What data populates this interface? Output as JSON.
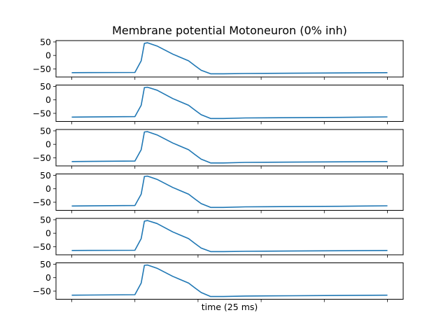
{
  "chart_data": {
    "type": "line",
    "title": "Membrane potential Motoneuron (0% inh)",
    "xlabel": "time (25 ms)",
    "ylabel": "",
    "ylim": [
      -80,
      55
    ],
    "yticks": [
      50,
      0,
      -50
    ],
    "ytick_labels": [
      "50",
      "0",
      "−50"
    ],
    "xlim": [
      -0.05,
      1.05
    ],
    "x_tick_count": 6,
    "x_tick_labels_shown": false,
    "grid": false,
    "legend": "none",
    "subplots": 6,
    "color": "#1f77b4",
    "series": [
      {
        "x": [
          0,
          0.2,
          0.22,
          0.23,
          0.24,
          0.27,
          0.32,
          0.37,
          0.39,
          0.41,
          0.44,
          0.48,
          0.55,
          0.7,
          0.85,
          1.0
        ],
        "y": [
          -64,
          -63,
          -20,
          45,
          47,
          35,
          5,
          -20,
          -38,
          -55,
          -68,
          -68,
          -67,
          -66,
          -65,
          -64
        ]
      },
      {
        "x": [
          0,
          0.2,
          0.22,
          0.23,
          0.24,
          0.27,
          0.32,
          0.37,
          0.39,
          0.41,
          0.44,
          0.48,
          0.55,
          0.7,
          0.85,
          1.0
        ],
        "y": [
          -64,
          -62,
          -20,
          46,
          47,
          36,
          5,
          -20,
          -38,
          -55,
          -69,
          -69,
          -67,
          -66,
          -65,
          -63
        ]
      },
      {
        "x": [
          0,
          0.2,
          0.22,
          0.23,
          0.24,
          0.27,
          0.32,
          0.37,
          0.39,
          0.41,
          0.44,
          0.48,
          0.55,
          0.7,
          0.85,
          1.0
        ],
        "y": [
          -64,
          -62,
          -20,
          46,
          47,
          35,
          5,
          -20,
          -38,
          -55,
          -69,
          -69,
          -67,
          -66,
          -65,
          -64
        ]
      },
      {
        "x": [
          0,
          0.2,
          0.22,
          0.23,
          0.24,
          0.27,
          0.32,
          0.37,
          0.39,
          0.41,
          0.44,
          0.48,
          0.55,
          0.7,
          0.85,
          1.0
        ],
        "y": [
          -64,
          -62,
          -20,
          46,
          47,
          35,
          5,
          -20,
          -38,
          -55,
          -69,
          -69,
          -67,
          -66,
          -65,
          -63
        ]
      },
      {
        "x": [
          0,
          0.2,
          0.22,
          0.23,
          0.24,
          0.27,
          0.32,
          0.37,
          0.39,
          0.41,
          0.44,
          0.48,
          0.55,
          0.7,
          0.85,
          1.0
        ],
        "y": [
          -64,
          -63,
          -20,
          45,
          47,
          36,
          5,
          -20,
          -38,
          -55,
          -68,
          -68,
          -67,
          -66,
          -65,
          -64
        ]
      },
      {
        "x": [
          0,
          0.2,
          0.22,
          0.23,
          0.24,
          0.27,
          0.32,
          0.37,
          0.39,
          0.41,
          0.44,
          0.48,
          0.55,
          0.7,
          0.85,
          1.0
        ],
        "y": [
          -65,
          -63,
          -20,
          46,
          47,
          35,
          5,
          -20,
          -38,
          -55,
          -70,
          -70,
          -68,
          -67,
          -66,
          -65
        ]
      }
    ]
  }
}
